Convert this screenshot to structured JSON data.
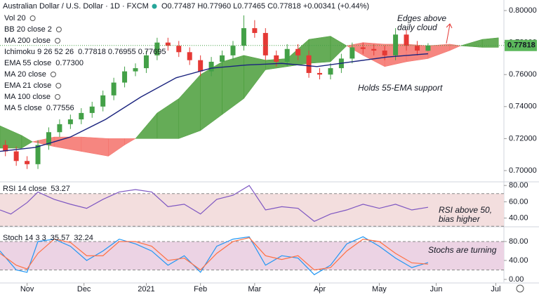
{
  "chart_data": [
    {
      "type": "candlestick",
      "title": "Australian Dollar / U.S. Dollar · 1D · FXCM",
      "subtitle": "O0.77487 H0.77960 L0.77465 C0.77818 +0.00341 (+0.44%)",
      "legend": [
        {
          "name": "Vol 20"
        },
        {
          "name": "BB 20 close 2"
        },
        {
          "name": "MA 200 close"
        },
        {
          "name": "Ichimoku 9 26 52 26",
          "value": "0.77818 0.76955 0.77695",
          "color": "#43a047"
        },
        {
          "name": "EMA 55 close",
          "value": "0.77300",
          "color": "#1a237e"
        },
        {
          "name": "MA 20 close"
        },
        {
          "name": "EMA 21 close"
        },
        {
          "name": "MA 100 close"
        },
        {
          "name": "MA 5 close",
          "value": "0.77556",
          "color": "#1e5aa8"
        }
      ],
      "annotations": [
        {
          "lines": [
            "Edges above",
            "daily cloud"
          ]
        },
        {
          "lines": [
            "Holds 55-EMA support"
          ]
        }
      ],
      "xlim": [
        -10,
        176
      ],
      "xticks": [
        {
          "value": 0,
          "label": "Nov"
        },
        {
          "value": 21,
          "label": "Dec"
        },
        {
          "value": 44,
          "label": "2021"
        },
        {
          "value": 64,
          "label": "Feb"
        },
        {
          "value": 84,
          "label": "Mar"
        },
        {
          "value": 108,
          "label": "Apr"
        },
        {
          "value": 130,
          "label": "May"
        },
        {
          "value": 151,
          "label": "Jun"
        },
        {
          "value": 173,
          "label": "Jul"
        }
      ],
      "ylim": [
        0.6934,
        0.8066
      ],
      "yticks": [
        {
          "value": 0.7,
          "label": "0.70000"
        },
        {
          "value": 0.72,
          "label": "0.72000"
        },
        {
          "value": 0.74,
          "label": "0.74000"
        },
        {
          "value": 0.76,
          "label": "0.76000"
        },
        {
          "value": 0.78,
          "label": "0.78000"
        },
        {
          "value": 0.8,
          "label": "0.80000"
        }
      ],
      "last_price": {
        "value": 0.77818,
        "label": "0.77818"
      },
      "up_color": "#43a047",
      "down_color": "#e53935",
      "x": [
        -8,
        -4,
        0,
        4,
        8,
        12,
        16,
        20,
        24,
        28,
        32,
        36,
        40,
        44,
        48,
        52,
        56,
        60,
        64,
        68,
        72,
        76,
        80,
        84,
        88,
        92,
        96,
        100,
        104,
        108,
        112,
        116,
        120,
        124,
        128,
        132,
        136,
        140,
        144,
        148
      ],
      "open": [
        0.716,
        0.712,
        0.706,
        0.704,
        0.716,
        0.724,
        0.729,
        0.732,
        0.736,
        0.74,
        0.747,
        0.755,
        0.762,
        0.764,
        0.772,
        0.78,
        0.778,
        0.774,
        0.769,
        0.762,
        0.768,
        0.772,
        0.778,
        0.789,
        0.786,
        0.772,
        0.768,
        0.776,
        0.772,
        0.761,
        0.76,
        0.764,
        0.77,
        0.777,
        0.776,
        0.775,
        0.772,
        0.785,
        0.778,
        0.77487
      ],
      "high": [
        0.719,
        0.715,
        0.709,
        0.719,
        0.727,
        0.732,
        0.735,
        0.739,
        0.743,
        0.75,
        0.758,
        0.765,
        0.767,
        0.775,
        0.783,
        0.783,
        0.781,
        0.777,
        0.772,
        0.771,
        0.775,
        0.781,
        0.797,
        0.794,
        0.789,
        0.775,
        0.779,
        0.779,
        0.775,
        0.764,
        0.767,
        0.773,
        0.78,
        0.78,
        0.779,
        0.778,
        0.789,
        0.788,
        0.781,
        0.7796
      ],
      "low": [
        0.709,
        0.703,
        0.701,
        0.701,
        0.713,
        0.721,
        0.726,
        0.729,
        0.733,
        0.737,
        0.744,
        0.752,
        0.759,
        0.761,
        0.769,
        0.775,
        0.771,
        0.766,
        0.759,
        0.759,
        0.765,
        0.769,
        0.775,
        0.783,
        0.769,
        0.765,
        0.765,
        0.769,
        0.758,
        0.757,
        0.757,
        0.761,
        0.767,
        0.773,
        0.772,
        0.769,
        0.769,
        0.775,
        0.772,
        0.77465
      ],
      "close": [
        0.712,
        0.706,
        0.704,
        0.716,
        0.724,
        0.729,
        0.732,
        0.736,
        0.74,
        0.747,
        0.755,
        0.762,
        0.764,
        0.772,
        0.78,
        0.778,
        0.774,
        0.769,
        0.762,
        0.768,
        0.772,
        0.778,
        0.789,
        0.786,
        0.772,
        0.768,
        0.776,
        0.772,
        0.761,
        0.76,
        0.764,
        0.77,
        0.777,
        0.776,
        0.775,
        0.772,
        0.785,
        0.778,
        0.775,
        0.77818
      ],
      "ema": {
        "color": "#1a237e",
        "x": [
          -10,
          3,
          16,
          29,
          42,
          55,
          68,
          81,
          94,
          107,
          120,
          133,
          148
        ],
        "values": [
          0.712,
          0.7145,
          0.721,
          0.732,
          0.746,
          0.758,
          0.764,
          0.766,
          0.767,
          0.765,
          0.768,
          0.771,
          0.773
        ]
      },
      "cloud": {
        "up_color": "#4a9d3a",
        "down_color": "#f4716a",
        "x": [
          -10,
          -2,
          2,
          10,
          20,
          30,
          36,
          40,
          48,
          56,
          64,
          72,
          80,
          88,
          96,
          104,
          112,
          118,
          124,
          132,
          140,
          148,
          156,
          160,
          168,
          174
        ],
        "span_a": [
          0.728,
          0.722,
          0.718,
          0.715,
          0.712,
          0.709,
          0.716,
          0.72,
          0.736,
          0.745,
          0.76,
          0.768,
          0.772,
          0.769,
          0.77,
          0.782,
          0.784,
          0.778,
          0.772,
          0.765,
          0.768,
          0.77,
          0.775,
          0.778,
          0.782,
          0.783
        ],
        "span_b": [
          0.714,
          0.714,
          0.718,
          0.721,
          0.721,
          0.72,
          0.72,
          0.72,
          0.72,
          0.72,
          0.725,
          0.735,
          0.745,
          0.763,
          0.765,
          0.767,
          0.768,
          0.778,
          0.78,
          0.779,
          0.779,
          0.778,
          0.779,
          0.778,
          0.777,
          0.777
        ]
      }
    },
    {
      "type": "line",
      "title": "RSI 14 close",
      "annotations": [
        {
          "lines": [
            "RSI above 50,",
            "bias higher"
          ]
        }
      ],
      "ylim": [
        30.2,
        83.6
      ],
      "yticks": [
        {
          "value": 40,
          "label": "40.00"
        },
        {
          "value": 60,
          "label": "60.00"
        },
        {
          "value": 80,
          "label": "80.00"
        }
      ],
      "band": [
        30,
        70
      ],
      "band_color": "#f3dede",
      "series": [
        {
          "color": "#7e57c2",
          "x": [
            -10,
            -6,
            0,
            4,
            10,
            16,
            22,
            28,
            34,
            40,
            46,
            52,
            58,
            64,
            70,
            76,
            82,
            88,
            94,
            100,
            106,
            112,
            118,
            124,
            130,
            136,
            142,
            148
          ],
          "values": [
            50,
            45,
            59,
            72,
            63,
            57,
            52,
            63,
            72,
            75,
            72,
            54,
            57,
            45,
            63,
            68,
            80,
            50,
            54,
            52,
            36,
            45,
            50,
            57,
            52,
            57,
            50,
            53.27
          ]
        }
      ]
    },
    {
      "type": "line",
      "title": "Stoch 14 3 3",
      "annotations": [
        {
          "lines": [
            "Stochs are turning"
          ]
        }
      ],
      "ylim": [
        -6,
        109.6
      ],
      "yticks": [
        {
          "value": 0,
          "label": "0.00"
        },
        {
          "value": 40,
          "label": "40.00"
        },
        {
          "value": 80,
          "label": "80.00"
        }
      ],
      "band": [
        20,
        80
      ],
      "band_color": "#ecd3e4",
      "series": [
        {
          "color": "#2196f3",
          "x": [
            -10,
            -4,
            0,
            4,
            10,
            16,
            22,
            28,
            34,
            40,
            46,
            52,
            58,
            64,
            70,
            76,
            82,
            88,
            94,
            100,
            106,
            112,
            118,
            124,
            130,
            136,
            142,
            148
          ],
          "values": [
            60,
            20,
            15,
            80,
            85,
            70,
            40,
            60,
            85,
            75,
            60,
            30,
            50,
            15,
            70,
            85,
            90,
            30,
            50,
            45,
            10,
            30,
            75,
            90,
            70,
            45,
            25,
            35.57
          ]
        },
        {
          "color": "#ff7043",
          "x": [
            -10,
            -4,
            0,
            4,
            10,
            16,
            22,
            28,
            34,
            40,
            46,
            52,
            58,
            64,
            70,
            76,
            82,
            88,
            94,
            100,
            106,
            112,
            118,
            124,
            130,
            136,
            142,
            148
          ],
          "values": [
            55,
            30,
            22,
            55,
            85,
            78,
            50,
            50,
            80,
            80,
            70,
            40,
            45,
            20,
            55,
            80,
            88,
            50,
            42,
            50,
            20,
            25,
            60,
            85,
            80,
            55,
            35,
            32.24
          ]
        }
      ]
    }
  ]
}
